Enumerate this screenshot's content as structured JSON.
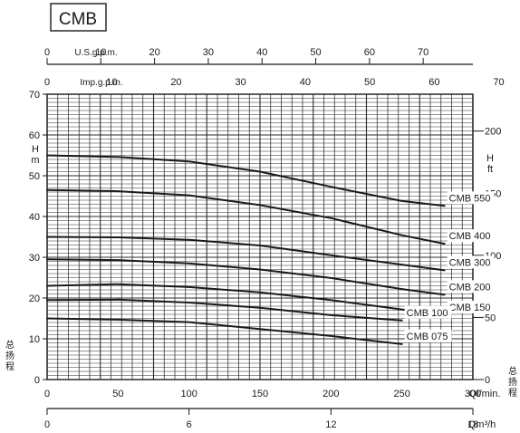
{
  "chart_data": {
    "type": "line",
    "title": "CMB",
    "xlabel": "Ql/min.",
    "ylabel": "H m",
    "ylabel_right": "H ft",
    "ylabel_cn": "总扬程",
    "xlim": [
      0,
      300
    ],
    "ylim": [
      0,
      70
    ],
    "grid": true,
    "x_ticks": [
      0,
      50,
      100,
      150,
      200,
      250,
      300
    ],
    "y_ticks": [
      0,
      10,
      20,
      30,
      40,
      50,
      60,
      70
    ],
    "top_axis_usgpm": {
      "label": "U.S.g.p.m.",
      "ticks": [
        0,
        10,
        20,
        30,
        40,
        50,
        60,
        70
      ]
    },
    "top_axis_impgpm": {
      "label": "Imp.g.p.m.",
      "ticks": [
        0,
        10,
        20,
        30,
        40,
        50,
        60,
        70
      ]
    },
    "right_axis_ft": {
      "ticks": [
        0,
        50,
        100,
        150,
        200
      ]
    },
    "bottom_axis_m3h": {
      "label": "Qm³/h",
      "ticks": [
        0,
        6,
        12,
        18
      ]
    },
    "series": [
      {
        "name": "CMB 550",
        "x": [
          0,
          50,
          100,
          150,
          200,
          250,
          280
        ],
        "y": [
          55,
          54.6,
          53.5,
          51,
          47.3,
          43.8,
          42.6
        ]
      },
      {
        "name": "CMB 400",
        "x": [
          0,
          50,
          100,
          150,
          200,
          250,
          280
        ],
        "y": [
          46.5,
          46.2,
          45.2,
          42.8,
          39.6,
          35.4,
          33.3
        ]
      },
      {
        "name": "CMB 300",
        "x": [
          0,
          50,
          100,
          150,
          200,
          250,
          280
        ],
        "y": [
          35,
          34.9,
          34.3,
          32.9,
          30.5,
          28.2,
          26.8
        ]
      },
      {
        "name": "CMB 200",
        "x": [
          0,
          50,
          100,
          150,
          200,
          250,
          280
        ],
        "y": [
          29.5,
          29.3,
          28.5,
          27,
          24.9,
          22.2,
          20.8
        ]
      },
      {
        "name": "CMB 150",
        "x": [
          0,
          50,
          100,
          150,
          200,
          250,
          280
        ],
        "y": [
          23,
          23.4,
          22.7,
          21.4,
          19.5,
          17.2,
          15.8
        ]
      },
      {
        "name": "CMB 100",
        "x": [
          0,
          50,
          100,
          150,
          200,
          250,
          250
        ],
        "y": [
          19.5,
          19.6,
          18.9,
          17.6,
          15.8,
          14.5,
          14.5
        ]
      },
      {
        "name": "CMB 075",
        "x": [
          0,
          50,
          100,
          150,
          200,
          250
        ],
        "y": [
          15,
          14.7,
          14.1,
          12.4,
          10.7,
          8.7
        ]
      }
    ]
  }
}
